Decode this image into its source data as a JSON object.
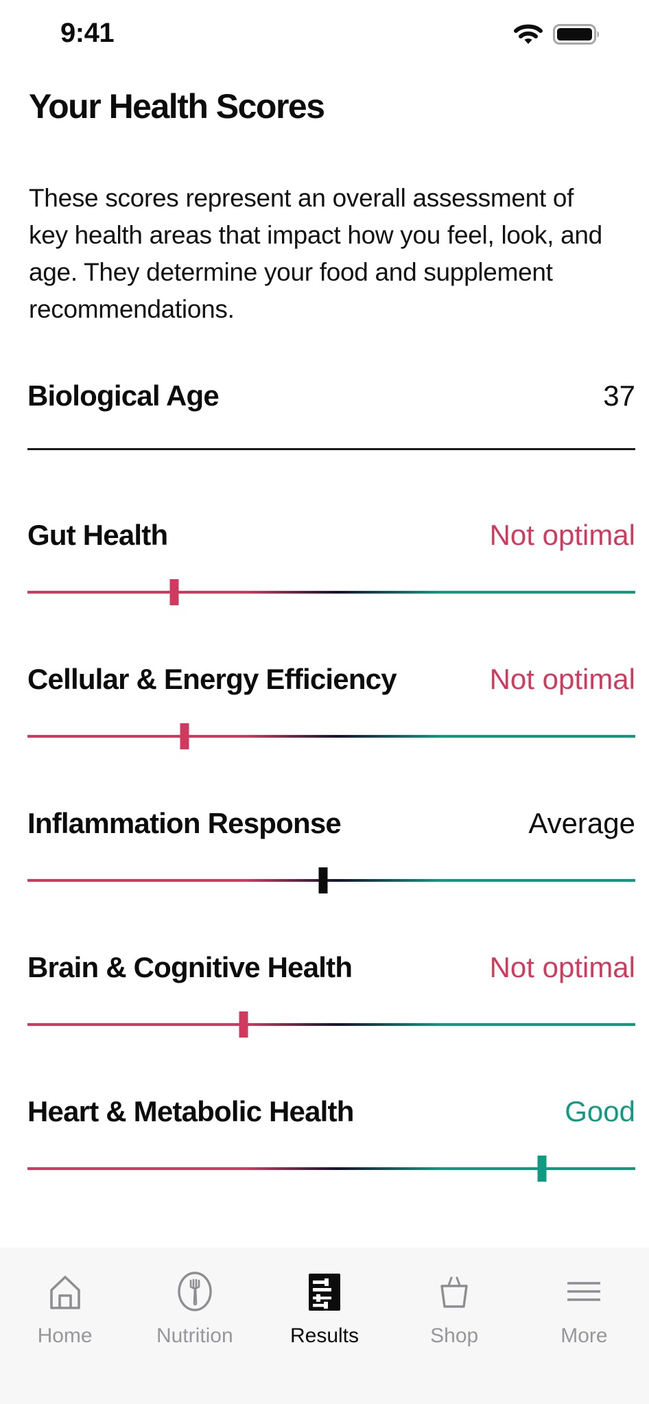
{
  "status_bar": {
    "time": "9:41"
  },
  "header": {
    "title": "Your Health Scores"
  },
  "description": "These scores represent an overall assessment of key health areas that impact how you feel, look, and age. They determine your food and supplement recommendations.",
  "biological_age": {
    "label": "Biological Age",
    "value": "37"
  },
  "scores": [
    {
      "label": "Gut Health",
      "status": "Not optimal",
      "status_type": "bad",
      "marker_percent": 24.2
    },
    {
      "label": "Cellular & Energy Efficiency",
      "status": "Not optimal",
      "status_type": "bad",
      "marker_percent": 25.8
    },
    {
      "label": "Inflammation Response",
      "status": "Average",
      "status_type": "average",
      "marker_percent": 48.7
    },
    {
      "label": "Brain & Cognitive Health",
      "status": "Not optimal",
      "status_type": "bad",
      "marker_percent": 35.6
    },
    {
      "label": "Heart & Metabolic Health",
      "status": "Good",
      "status_type": "good",
      "marker_percent": 84.6
    }
  ],
  "tab_bar": {
    "items": [
      {
        "label": "Home",
        "icon": "home-icon",
        "active": false
      },
      {
        "label": "Nutrition",
        "icon": "fork-icon",
        "active": false
      },
      {
        "label": "Results",
        "icon": "sliders-icon",
        "active": true
      },
      {
        "label": "Shop",
        "icon": "basket-icon",
        "active": false
      },
      {
        "label": "More",
        "icon": "menu-icon",
        "active": false
      }
    ]
  },
  "colors": {
    "bad": "#d13a5e",
    "average": "#0c0c0c",
    "good": "#0f9b82",
    "track_red": "#d13a5e",
    "track_dark": "#171330",
    "track_teal": "#0f9b82",
    "divider": "#1a1a1a",
    "tab_inactive": "#97979b",
    "tab_bar_bg": "#f7f7f8"
  }
}
